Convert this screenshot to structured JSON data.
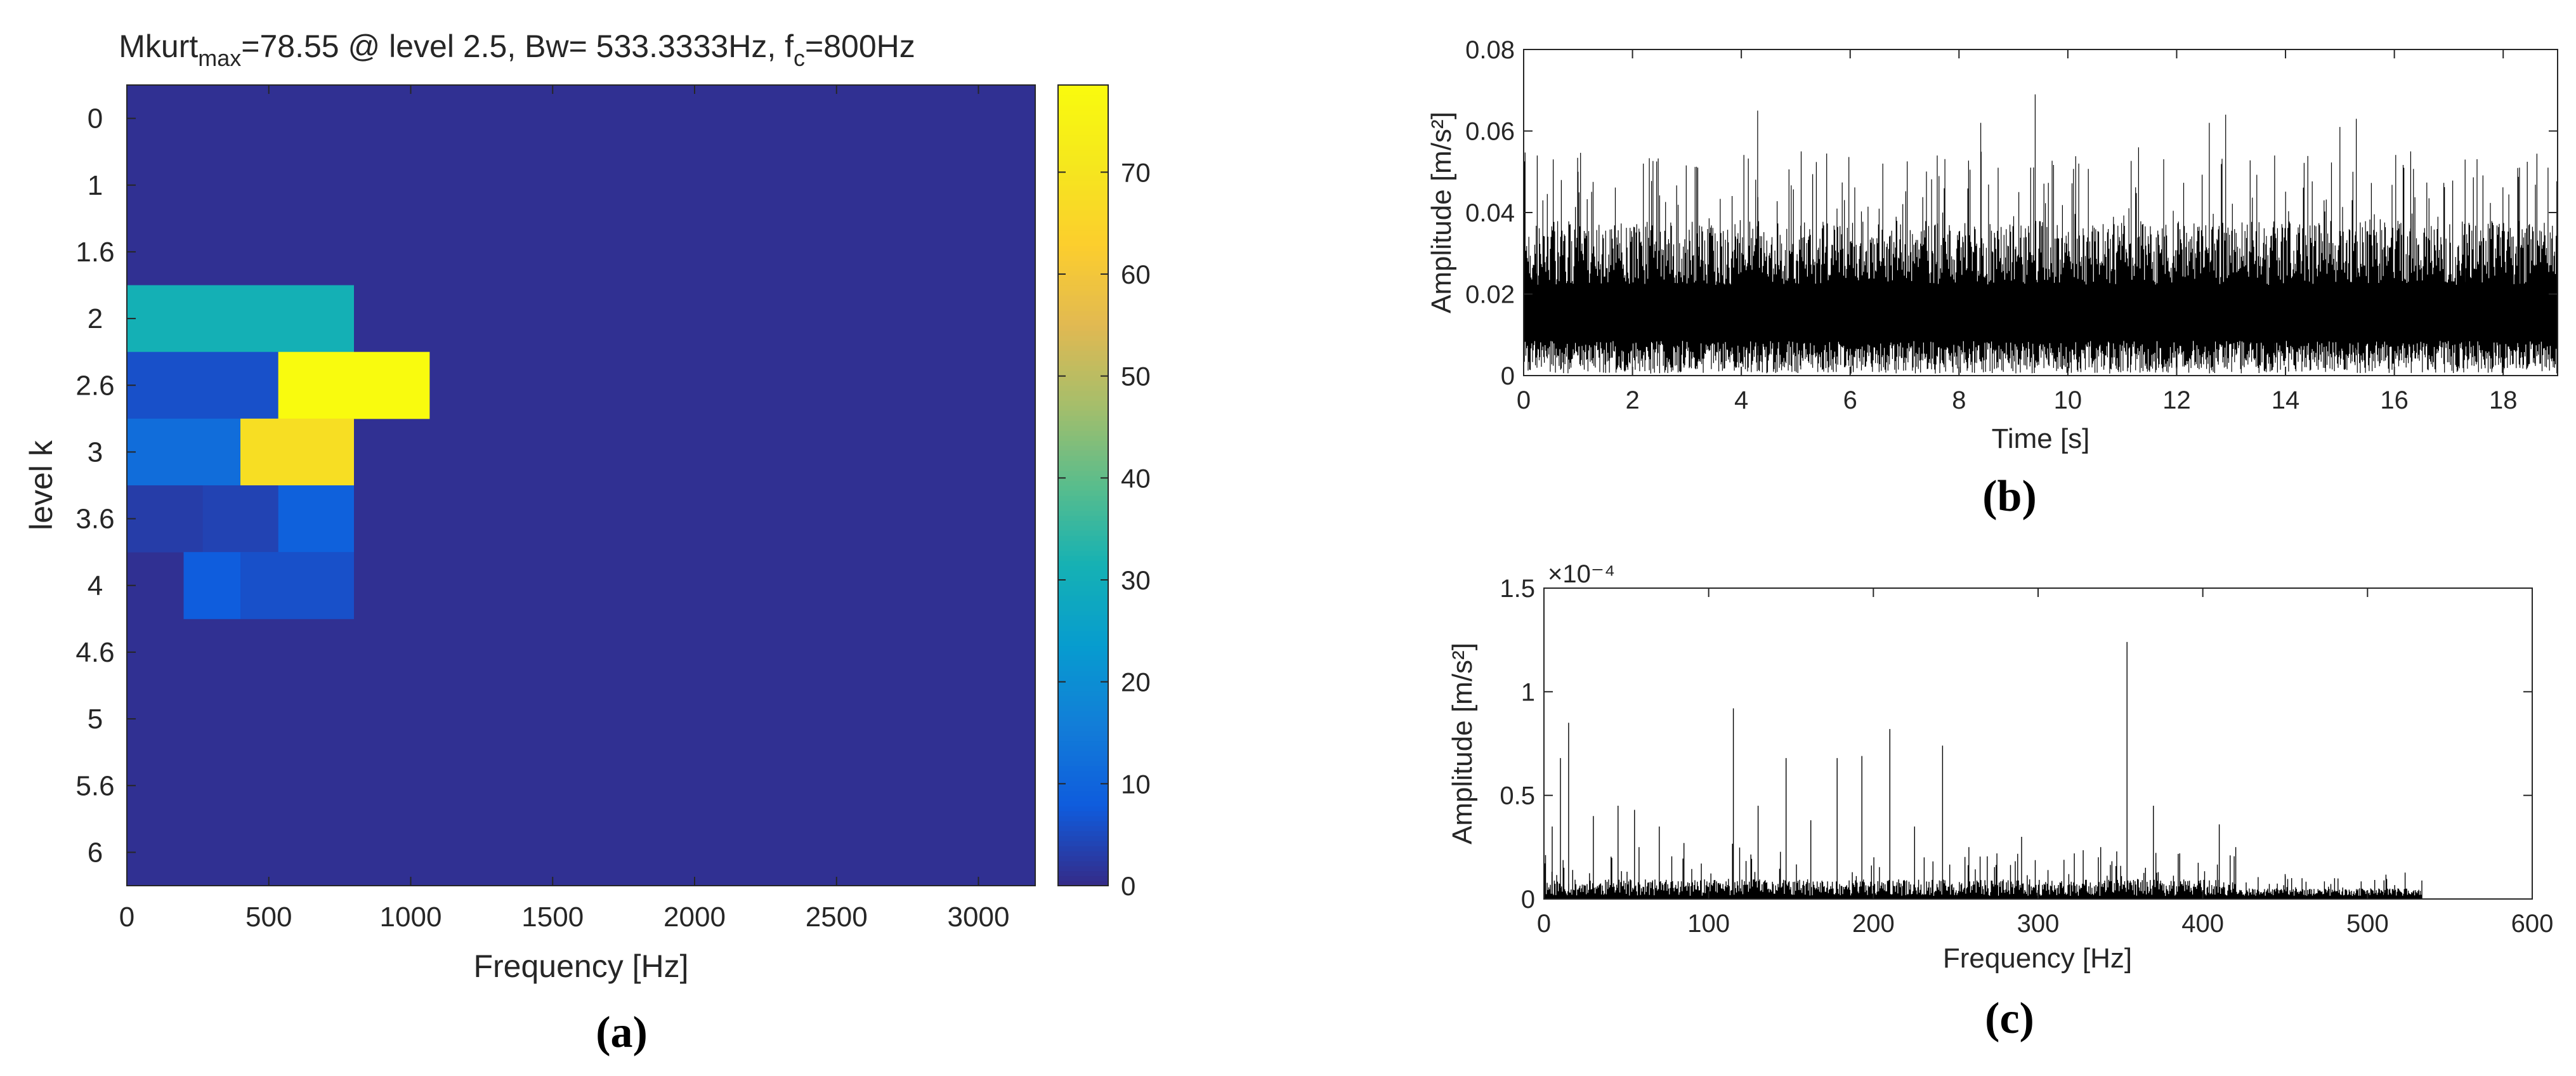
{
  "chart_data": [
    {
      "panel_label": "(a)",
      "type": "heatmap",
      "title_parts": {
        "base": "Mkurt",
        "sub": "max",
        "rest1": "=78.55 @ level 2.5, Bw= 533.3333Hz, f",
        "sub2": "c",
        "rest2": "=800Hz"
      },
      "xlabel": "Frequency [Hz]",
      "ylabel": "level k",
      "xlim": [
        0,
        3200
      ],
      "x_ticks": [
        0,
        500,
        1000,
        1500,
        2000,
        2500,
        3000
      ],
      "levels": [
        "0",
        "1",
        "1.6",
        "2",
        "2.6",
        "3",
        "3.6",
        "4",
        "4.6",
        "5",
        "5.6",
        "6"
      ],
      "colorbar": {
        "range": [
          0,
          78.55
        ],
        "ticks": [
          0,
          10,
          20,
          30,
          40,
          50,
          60,
          70
        ]
      },
      "background_value": 1,
      "cells": [
        {
          "row": 3,
          "x0": 0,
          "x1": 800,
          "value": 31
        },
        {
          "row": 4,
          "x0": 0,
          "x1": 533.3,
          "value": 6
        },
        {
          "row": 4,
          "x0": 533.3,
          "x1": 1066.7,
          "value": 78.55
        },
        {
          "row": 5,
          "x0": 0,
          "x1": 400,
          "value": 12
        },
        {
          "row": 5,
          "x0": 400,
          "x1": 800,
          "value": 68
        },
        {
          "row": 6,
          "x0": 0,
          "x1": 266.7,
          "value": 3
        },
        {
          "row": 6,
          "x0": 266.7,
          "x1": 533.3,
          "value": 4
        },
        {
          "row": 6,
          "x0": 533.3,
          "x1": 800,
          "value": 9
        },
        {
          "row": 7,
          "x0": 200,
          "x1": 400,
          "value": 8
        },
        {
          "row": 7,
          "x0": 400,
          "x1": 800,
          "value": 6
        }
      ]
    },
    {
      "panel_label": "(b)",
      "type": "line",
      "xlabel": "Time [s]",
      "ylabel": "Amplitude [m/s²]",
      "xlim": [
        0,
        19
      ],
      "ylim": [
        0,
        0.08
      ],
      "x_ticks": [
        0,
        2,
        4,
        6,
        8,
        10,
        12,
        14,
        16,
        18
      ],
      "y_ticks": [
        0,
        0.02,
        0.04,
        0.06,
        0.08
      ],
      "y_tick_labels": [
        "0",
        "0.02",
        "0.04",
        "0.06",
        "0.08"
      ],
      "signal": {
        "typical_min": 0.003,
        "typical_max": 0.038,
        "max_peak": 0.069,
        "samples": 1400
      },
      "peaks": [
        {
          "x": 0.25,
          "y": 0.054
        },
        {
          "x": 1.0,
          "y": 0.05
        },
        {
          "x": 2.2,
          "y": 0.052
        },
        {
          "x": 3.2,
          "y": 0.051
        },
        {
          "x": 4.3,
          "y": 0.065
        },
        {
          "x": 5.1,
          "y": 0.055
        },
        {
          "x": 6.6,
          "y": 0.052
        },
        {
          "x": 7.6,
          "y": 0.054
        },
        {
          "x": 8.4,
          "y": 0.062
        },
        {
          "x": 9.4,
          "y": 0.069
        },
        {
          "x": 10.2,
          "y": 0.052
        },
        {
          "x": 11.3,
          "y": 0.056
        },
        {
          "x": 12.6,
          "y": 0.062
        },
        {
          "x": 12.9,
          "y": 0.064
        },
        {
          "x": 13.8,
          "y": 0.054
        },
        {
          "x": 15.0,
          "y": 0.061
        },
        {
          "x": 15.3,
          "y": 0.063
        },
        {
          "x": 16.3,
          "y": 0.055
        },
        {
          "x": 17.3,
          "y": 0.053
        },
        {
          "x": 18.3,
          "y": 0.051
        }
      ]
    },
    {
      "panel_label": "(c)",
      "type": "line",
      "xlabel": "Frequency [Hz]",
      "ylabel": "Amplitude [m/s²]",
      "xlim": [
        0,
        600
      ],
      "ylim": [
        0,
        0.00015
      ],
      "y_multiplier": "×10⁻⁴",
      "x_ticks": [
        0,
        100,
        200,
        300,
        400,
        500,
        600
      ],
      "y_ticks": [
        0,
        5e-05,
        0.0001,
        0.00015
      ],
      "y_tick_labels": [
        "0",
        "0.5",
        "1",
        "1.5"
      ],
      "spectrum_end": 533,
      "peaks": [
        {
          "x": 5,
          "y": 3.5e-05
        },
        {
          "x": 10,
          "y": 6.8e-05
        },
        {
          "x": 15,
          "y": 8.5e-05
        },
        {
          "x": 30,
          "y": 4e-05
        },
        {
          "x": 45,
          "y": 4.5e-05
        },
        {
          "x": 55,
          "y": 4.3e-05
        },
        {
          "x": 70,
          "y": 3.5e-05
        },
        {
          "x": 85,
          "y": 2.7e-05
        },
        {
          "x": 115,
          "y": 9.2e-05
        },
        {
          "x": 130,
          "y": 4.5e-05
        },
        {
          "x": 147,
          "y": 6.8e-05
        },
        {
          "x": 162,
          "y": 3.8e-05
        },
        {
          "x": 178,
          "y": 6.8e-05
        },
        {
          "x": 193,
          "y": 6.9e-05
        },
        {
          "x": 210,
          "y": 8.2e-05
        },
        {
          "x": 225,
          "y": 3.5e-05
        },
        {
          "x": 242,
          "y": 7.4e-05
        },
        {
          "x": 258,
          "y": 2.5e-05
        },
        {
          "x": 275,
          "y": 2.2e-05
        },
        {
          "x": 290,
          "y": 3e-05
        },
        {
          "x": 322,
          "y": 2.2e-05
        },
        {
          "x": 338,
          "y": 2.5e-05
        },
        {
          "x": 354,
          "y": 0.000124
        },
        {
          "x": 370,
          "y": 4.5e-05
        },
        {
          "x": 386,
          "y": 2.2e-05
        },
        {
          "x": 410,
          "y": 3.6e-05
        },
        {
          "x": 420,
          "y": 2.5e-05
        },
        {
          "x": 450,
          "y": 1.2e-05
        },
        {
          "x": 480,
          "y": 1e-05
        },
        {
          "x": 510,
          "y": 9e-06
        }
      ]
    }
  ]
}
